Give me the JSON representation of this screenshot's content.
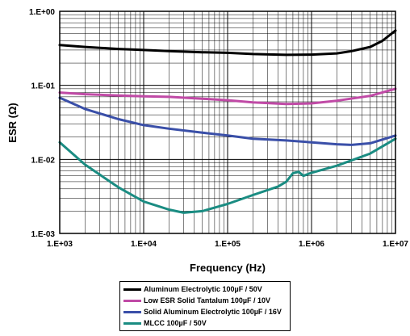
{
  "chart_data": {
    "type": "line",
    "xlabel": "Frequency (Hz)",
    "ylabel": "ESR (Ω)",
    "x_scale": "log",
    "y_scale": "log",
    "xlim": [
      1000,
      10000000
    ],
    "ylim": [
      0.001,
      1
    ],
    "x_ticks": [
      1000,
      10000,
      100000,
      1000000,
      10000000
    ],
    "x_tick_labels": [
      "1.E+03",
      "1.E+04",
      "1.E+05",
      "1.E+06",
      "1.E+07"
    ],
    "y_ticks": [
      0.001,
      0.01,
      0.1,
      1
    ],
    "y_tick_labels": [
      "1.E-03",
      "1.E-02",
      "1.E-01",
      "1.E+00"
    ],
    "grid": true,
    "legend_position": "bottom-center",
    "series": [
      {
        "name": "Aluminum Electrolytic 100µF / 50V",
        "color": "#000000",
        "x": [
          1000,
          2000,
          5000,
          10000,
          20000,
          50000,
          100000,
          200000,
          500000,
          1000000,
          2000000,
          3000000,
          5000000,
          7000000,
          10000000
        ],
        "y": [
          0.35,
          0.33,
          0.31,
          0.3,
          0.29,
          0.28,
          0.275,
          0.265,
          0.258,
          0.26,
          0.27,
          0.29,
          0.33,
          0.4,
          0.55
        ]
      },
      {
        "name": "Low ESR Solid Tantalum 100µF / 10V",
        "color": "#c04aa6",
        "x": [
          1000,
          2000,
          5000,
          10000,
          20000,
          50000,
          100000,
          200000,
          500000,
          1000000,
          2000000,
          5000000,
          10000000
        ],
        "y": [
          0.08,
          0.076,
          0.073,
          0.071,
          0.07,
          0.066,
          0.063,
          0.059,
          0.056,
          0.057,
          0.062,
          0.072,
          0.09
        ]
      },
      {
        "name": "Solid Aluminum Electrolytic 100µF / 16V",
        "color": "#3a4fa8",
        "x": [
          1000,
          2000,
          5000,
          10000,
          20000,
          50000,
          100000,
          200000,
          500000,
          1000000,
          2000000,
          3000000,
          5000000,
          10000000
        ],
        "y": [
          0.068,
          0.048,
          0.035,
          0.029,
          0.026,
          0.023,
          0.021,
          0.019,
          0.018,
          0.017,
          0.016,
          0.0157,
          0.0165,
          0.021
        ]
      },
      {
        "name": "MLCC 100µF / 50V",
        "color": "#1a8c82",
        "x": [
          1000,
          2000,
          5000,
          10000,
          20000,
          30000,
          50000,
          100000,
          200000,
          400000,
          500000,
          600000,
          700000,
          800000,
          1000000,
          2000000,
          5000000,
          10000000
        ],
        "y": [
          0.017,
          0.0085,
          0.0042,
          0.0027,
          0.0021,
          0.0019,
          0.002,
          0.0025,
          0.0033,
          0.0043,
          0.005,
          0.0065,
          0.0068,
          0.006,
          0.0066,
          0.0082,
          0.012,
          0.019
        ]
      }
    ]
  }
}
